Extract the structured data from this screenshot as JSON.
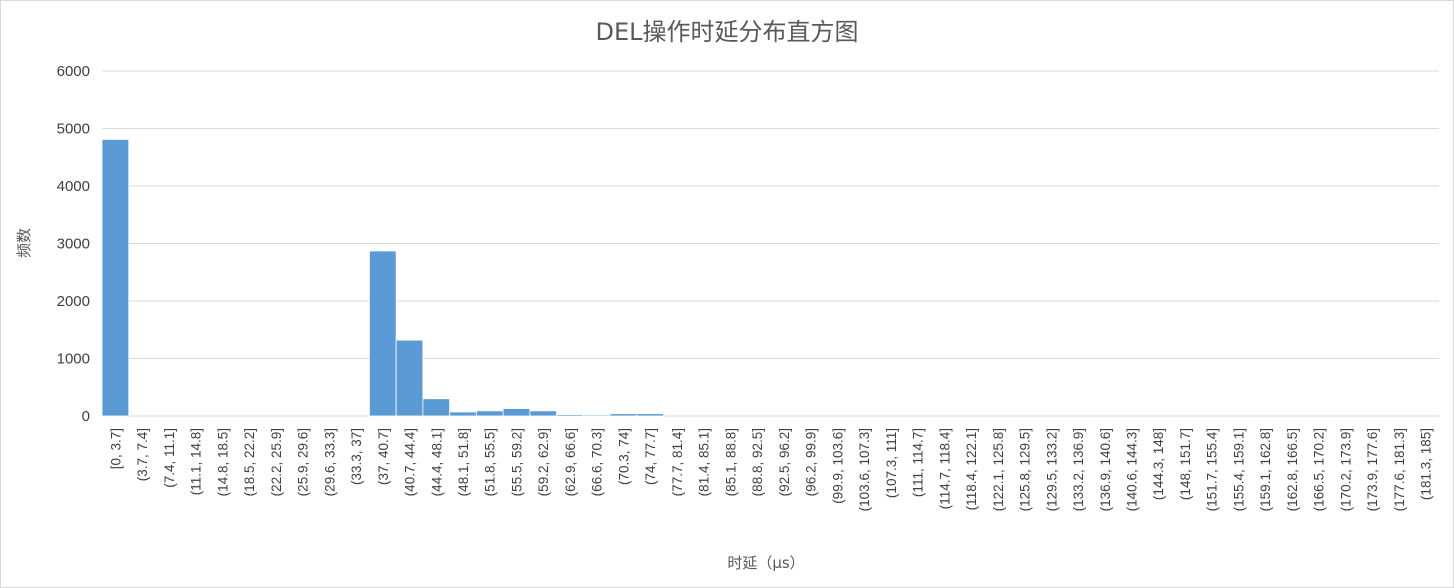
{
  "chart_data": {
    "type": "bar",
    "title": "DEL操作时延分布直方图",
    "xlabel": "时延（μs）",
    "ylabel": "频数",
    "ylim": [
      0,
      6000
    ],
    "yticks": [
      0,
      1000,
      2000,
      3000,
      4000,
      5000,
      6000
    ],
    "grid": true,
    "legend": "none",
    "colors": {
      "bar": "#5b9bd5",
      "grid": "#d9d9d9",
      "text": "#595959"
    },
    "categories": [
      "[0, 3.7]",
      "(3.7, 7.4]",
      "(7.4, 11.1]",
      "(11.1, 14.8]",
      "(14.8, 18.5]",
      "(18.5, 22.2]",
      "(22.2, 25.9]",
      "(25.9, 29.6]",
      "(29.6, 33.3]",
      "(33.3, 37]",
      "(37, 40.7]",
      "(40.7, 44.4]",
      "(44.4, 48.1]",
      "(48.1, 51.8]",
      "(51.8, 55.5]",
      "(55.5, 59.2]",
      "(59.2, 62.9]",
      "(62.9, 66.6]",
      "(66.6, 70.3]",
      "(70.3, 74]",
      "(74, 77.7]",
      "(77.7, 81.4]",
      "(81.4, 85.1]",
      "(85.1, 88.8]",
      "(88.8, 92.5]",
      "(92.5, 96.2]",
      "(96.2, 99.9]",
      "(99.9, 103.6]",
      "(103.6, 107.3]",
      "(107.3, 111]",
      "(111, 114.7]",
      "(114.7, 118.4]",
      "(118.4, 122.1]",
      "(122.1, 125.8]",
      "(125.8, 129.5]",
      "(129.5, 133.2]",
      "(133.2, 136.9]",
      "(136.9, 140.6]",
      "(140.6, 144.3]",
      "(144.3, 148]",
      "(148, 151.7]",
      "(151.7, 155.4]",
      "(155.4, 159.1]",
      "(159.1, 162.8]",
      "(162.8, 166.5]",
      "(166.5, 170.2]",
      "(170.2, 173.9]",
      "(173.9, 177.6]",
      "(177.6, 181.3]",
      "(181.3, 185]"
    ],
    "values": [
      4810,
      0,
      0,
      0,
      0,
      0,
      0,
      0,
      0,
      0,
      2870,
      1320,
      300,
      70,
      90,
      130,
      90,
      25,
      20,
      40,
      40,
      0,
      0,
      0,
      0,
      0,
      0,
      0,
      0,
      0,
      0,
      0,
      0,
      0,
      0,
      0,
      0,
      0,
      0,
      0,
      0,
      0,
      0,
      0,
      0,
      0,
      0,
      0,
      0,
      0
    ]
  }
}
